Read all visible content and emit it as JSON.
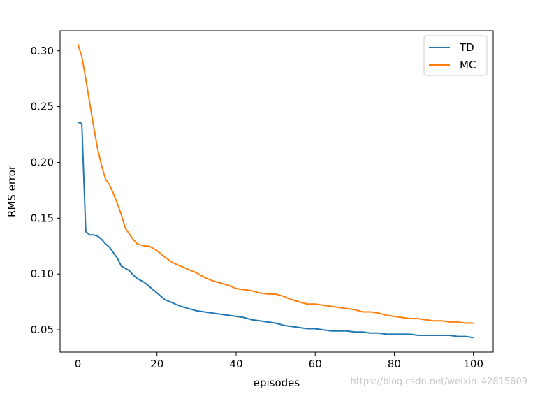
{
  "chart_data": {
    "type": "line",
    "title": "",
    "xlabel": "episodes",
    "ylabel": "RMS error",
    "xlim": [
      -4.5,
      105
    ],
    "ylim": [
      0.03,
      0.318
    ],
    "xticks": [
      0,
      20,
      40,
      60,
      80,
      100
    ],
    "xtick_labels": [
      "0",
      "20",
      "40",
      "60",
      "80",
      "100"
    ],
    "yticks": [
      0.05,
      0.1,
      0.15,
      0.2,
      0.25,
      0.3
    ],
    "ytick_labels": [
      "0.05",
      "0.10",
      "0.15",
      "0.20",
      "0.25",
      "0.30"
    ],
    "grid": false,
    "legend_position": "top-right",
    "series": [
      {
        "name": "TD",
        "color": "#1f77b4",
        "x": [
          0,
          1,
          2,
          3,
          4,
          5,
          6,
          7,
          8,
          9,
          10,
          11,
          12,
          13,
          14,
          15,
          16,
          17,
          18,
          19,
          20,
          22,
          24,
          26,
          28,
          30,
          32,
          34,
          36,
          38,
          40,
          42,
          44,
          46,
          48,
          50,
          52,
          54,
          56,
          58,
          60,
          62,
          64,
          66,
          68,
          70,
          72,
          74,
          76,
          78,
          80,
          82,
          84,
          86,
          88,
          90,
          92,
          94,
          96,
          98,
          100
        ],
        "values": [
          0.236,
          0.235,
          0.138,
          0.135,
          0.135,
          0.134,
          0.131,
          0.127,
          0.124,
          0.119,
          0.114,
          0.107,
          0.105,
          0.103,
          0.099,
          0.096,
          0.094,
          0.092,
          0.089,
          0.086,
          0.083,
          0.077,
          0.074,
          0.071,
          0.069,
          0.067,
          0.066,
          0.065,
          0.064,
          0.063,
          0.062,
          0.061,
          0.059,
          0.058,
          0.057,
          0.056,
          0.054,
          0.053,
          0.052,
          0.051,
          0.051,
          0.05,
          0.049,
          0.049,
          0.049,
          0.048,
          0.048,
          0.047,
          0.047,
          0.046,
          0.046,
          0.046,
          0.046,
          0.045,
          0.045,
          0.045,
          0.045,
          0.045,
          0.044,
          0.044,
          0.043
        ]
      },
      {
        "name": "MC",
        "color": "#ff7f0e",
        "x": [
          0,
          1,
          2,
          3,
          4,
          5,
          6,
          7,
          8,
          9,
          10,
          11,
          12,
          13,
          14,
          15,
          16,
          17,
          18,
          19,
          20,
          22,
          24,
          26,
          28,
          30,
          32,
          34,
          36,
          38,
          40,
          42,
          44,
          46,
          48,
          50,
          52,
          54,
          56,
          58,
          60,
          62,
          64,
          66,
          68,
          70,
          72,
          74,
          76,
          78,
          80,
          82,
          84,
          86,
          88,
          90,
          92,
          94,
          96,
          98,
          100
        ],
        "values": [
          0.306,
          0.295,
          0.275,
          0.253,
          0.232,
          0.212,
          0.197,
          0.185,
          0.18,
          0.172,
          0.163,
          0.153,
          0.141,
          0.136,
          0.131,
          0.127,
          0.126,
          0.125,
          0.125,
          0.123,
          0.121,
          0.115,
          0.11,
          0.107,
          0.104,
          0.101,
          0.097,
          0.094,
          0.092,
          0.09,
          0.087,
          0.086,
          0.085,
          0.083,
          0.082,
          0.082,
          0.08,
          0.077,
          0.075,
          0.073,
          0.073,
          0.072,
          0.071,
          0.07,
          0.069,
          0.068,
          0.066,
          0.066,
          0.065,
          0.063,
          0.062,
          0.061,
          0.06,
          0.06,
          0.059,
          0.058,
          0.058,
          0.057,
          0.057,
          0.056,
          0.056
        ]
      }
    ]
  },
  "watermark": "https://blog.csdn.net/weixin_42815609"
}
